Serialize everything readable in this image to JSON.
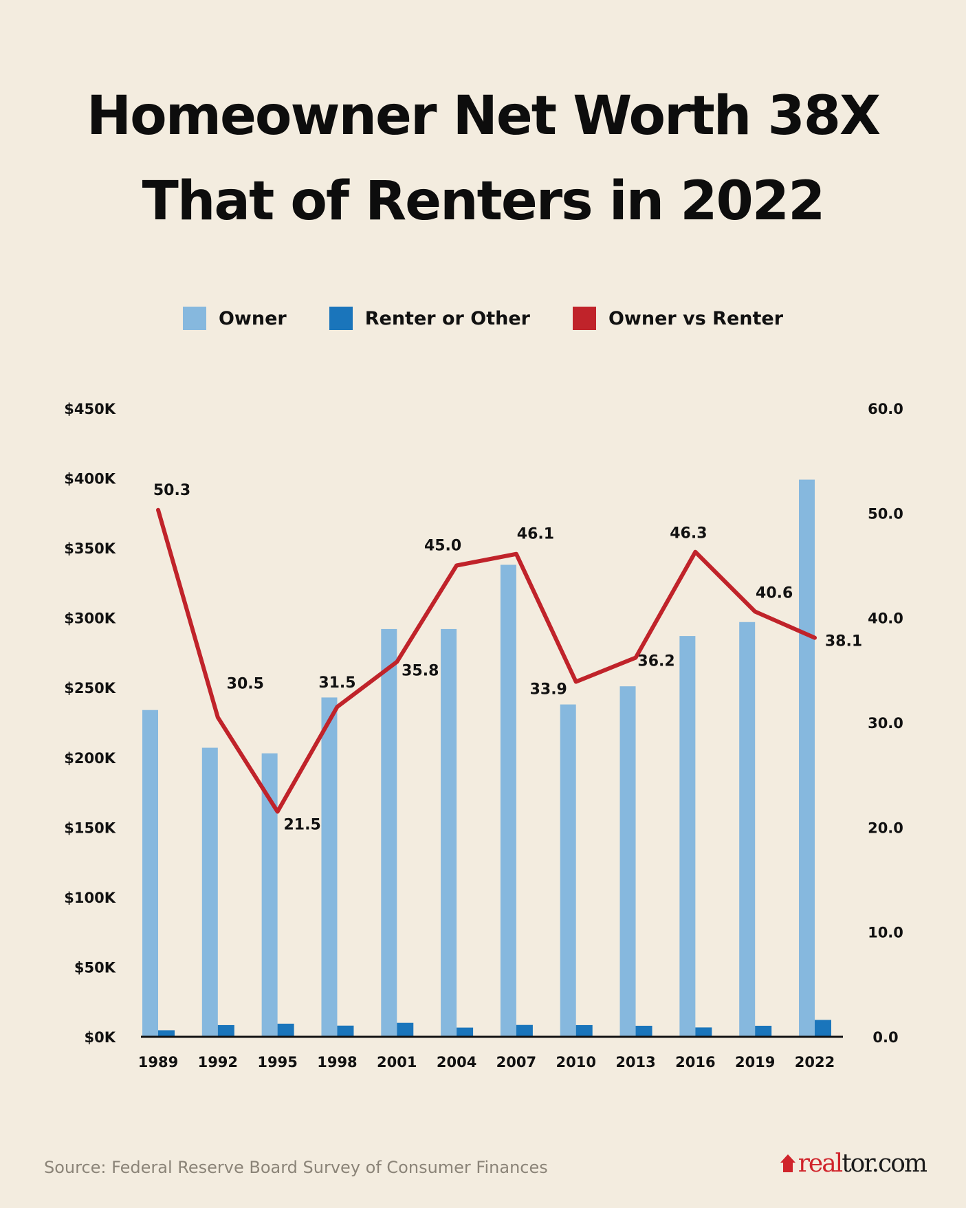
{
  "chart_data": {
    "type": "bar+line",
    "title": "Homeowner Net Worth 38X That of Renters in 2022",
    "title_lines": [
      "Homeowner Net Worth 38X",
      "That of Renters in 2022"
    ],
    "categories": [
      "1989",
      "1992",
      "1995",
      "1998",
      "2001",
      "2004",
      "2007",
      "2010",
      "2013",
      "2016",
      "2019",
      "2022"
    ],
    "series": [
      {
        "name": "Owner",
        "type": "bar",
        "axis": "left",
        "color": "#86b8de",
        "values": [
          234,
          207,
          203,
          243,
          292,
          292,
          338,
          238,
          251,
          287,
          297,
          399
        ]
      },
      {
        "name": "Renter or Other",
        "type": "bar",
        "axis": "left",
        "color": "#1a75bb",
        "values": [
          4.7,
          8.4,
          9.4,
          8.0,
          10.0,
          6.6,
          8.5,
          8.4,
          7.9,
          6.7,
          7.9,
          12.1
        ]
      },
      {
        "name": "Owner vs Renter",
        "type": "line",
        "axis": "right",
        "color": "#c0232a",
        "values": [
          50.3,
          30.5,
          21.5,
          31.5,
          35.8,
          45.0,
          46.1,
          33.9,
          36.2,
          46.3,
          40.6,
          38.1
        ],
        "labels": [
          "50.3",
          "30.5",
          "21.5",
          "31.5",
          "35.8",
          "45.0",
          "46.1",
          "33.9",
          "36.2",
          "46.3",
          "40.6",
          "38.1"
        ]
      }
    ],
    "left_axis": {
      "ylim": [
        0,
        450
      ],
      "unit": "thousand USD",
      "ticks": [
        "$0K",
        "$50K",
        "$100K",
        "$150K",
        "$200K",
        "$250K",
        "$300K",
        "$350K",
        "$400K",
        "$450K"
      ]
    },
    "right_axis": {
      "ylim": [
        0,
        60
      ],
      "ticks": [
        "0.0",
        "10.0",
        "20.0",
        "30.0",
        "40.0",
        "50.0",
        "60.0"
      ]
    },
    "grid": false,
    "legend_position": "top"
  },
  "footer": {
    "source": "Source: Federal Reserve Board Survey of Consumer Finances",
    "logo_text_red": "real",
    "logo_text_dark": "tor.com"
  },
  "colors": {
    "background": "#f3ecdf",
    "owner": "#86b8de",
    "renter": "#1a75bb",
    "ratio_line": "#c0232a"
  }
}
